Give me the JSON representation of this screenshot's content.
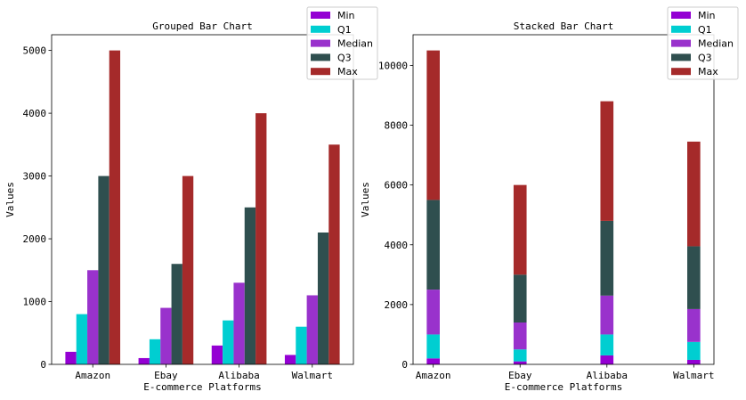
{
  "chart_data": [
    {
      "type": "bar",
      "title": "Grouped Bar Chart",
      "xlabel": "E-commerce Platforms",
      "ylabel": "Values",
      "categories": [
        "Amazon",
        "Ebay",
        "Alibaba",
        "Walmart"
      ],
      "ylim": [
        0,
        5250
      ],
      "yticks": [
        0,
        1000,
        2000,
        3000,
        4000,
        5000
      ],
      "grid": false,
      "legend": "top-right",
      "series": [
        {
          "name": "Min",
          "color": "#9400d3",
          "values": [
            200,
            100,
            300,
            150
          ]
        },
        {
          "name": "Q1",
          "color": "#00ced1",
          "values": [
            800,
            400,
            700,
            600
          ]
        },
        {
          "name": "Median",
          "color": "#9932cc",
          "values": [
            1500,
            900,
            1300,
            1100
          ]
        },
        {
          "name": "Q3",
          "color": "#2f4f4f",
          "values": [
            3000,
            1600,
            2500,
            2100
          ]
        },
        {
          "name": "Max",
          "color": "#a52a2a",
          "values": [
            5000,
            3000,
            4000,
            3500
          ]
        }
      ]
    },
    {
      "type": "bar",
      "stacked": true,
      "title": "Stacked Bar Chart",
      "xlabel": "E-commerce Platforms",
      "ylabel": "Values",
      "categories": [
        "Amazon",
        "Ebay",
        "Alibaba",
        "Walmart"
      ],
      "ylim": [
        0,
        11025
      ],
      "yticks": [
        0,
        2000,
        4000,
        6000,
        8000,
        10000
      ],
      "grid": false,
      "legend": "top-right",
      "series": [
        {
          "name": "Min",
          "color": "#9400d3",
          "values": [
            200,
            100,
            300,
            150
          ]
        },
        {
          "name": "Q1",
          "color": "#00ced1",
          "values": [
            800,
            400,
            700,
            600
          ]
        },
        {
          "name": "Median",
          "color": "#9932cc",
          "values": [
            1500,
            900,
            1300,
            1100
          ]
        },
        {
          "name": "Q3",
          "color": "#2f4f4f",
          "values": [
            3000,
            1600,
            2500,
            2100
          ]
        },
        {
          "name": "Max",
          "color": "#a52a2a",
          "values": [
            5000,
            3000,
            4000,
            3500
          ]
        }
      ]
    }
  ]
}
